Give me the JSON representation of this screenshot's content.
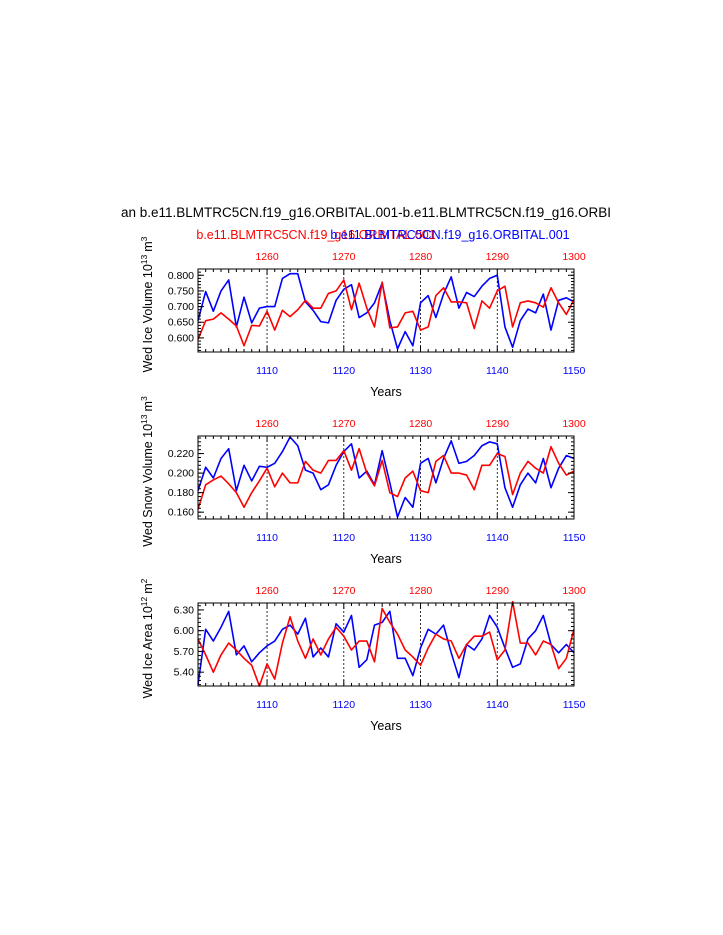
{
  "title": "an b.e11.BLMTRC5CN.f19_g16.ORBITAL.001-b.e11.BLMTRC5CN.f19_g16.ORBI",
  "legend": {
    "red_label": "b.e11.BLMTRC5CN.f19_g16.ORBITAL.001",
    "blue_label": "b.e11.BLMTRC5CN.f19_g16.ORBITAL.001"
  },
  "colors": {
    "red": "#ff0000",
    "blue": "#0000ff"
  },
  "chart_data": [
    {
      "type": "line",
      "title": "",
      "ylabel": "Wed Ice Volume 10^13 m^3",
      "ylabel_main": "Wed Ice Volume 10",
      "ylabel_exp": "13",
      "ylabel_unit": "m",
      "ylabel_unit_exp": "3",
      "xlabel": "Years",
      "x_bottom": {
        "range": [
          1101,
          1150
        ],
        "ticks": [
          1110,
          1120,
          1130,
          1140,
          1150
        ],
        "color": "#0000ff"
      },
      "x_top": {
        "range": [
          1251,
          1300
        ],
        "ticks": [
          1260,
          1270,
          1280,
          1290,
          1300
        ],
        "color": "#ff0000"
      },
      "ylim": [
        0.555,
        0.82
      ],
      "yticks": [
        0.6,
        0.65,
        0.7,
        0.75,
        0.8
      ],
      "ytick_labels": [
        "0.600",
        "0.650",
        "0.700",
        "0.750",
        "0.800"
      ],
      "series": [
        {
          "name": "blue",
          "color": "#0000ff",
          "values": [
            0.655,
            0.748,
            0.685,
            0.75,
            0.785,
            0.635,
            0.73,
            0.648,
            0.695,
            0.7,
            0.7,
            0.79,
            0.805,
            0.805,
            0.715,
            0.688,
            0.652,
            0.648,
            0.72,
            0.755,
            0.77,
            0.665,
            0.68,
            0.712,
            0.775,
            0.655,
            0.565,
            0.62,
            0.575,
            0.712,
            0.735,
            0.665,
            0.74,
            0.795,
            0.695,
            0.745,
            0.732,
            0.765,
            0.79,
            0.8,
            0.635,
            0.57,
            0.655,
            0.692,
            0.68,
            0.74,
            0.625,
            0.72,
            0.728,
            0.715
          ]
        },
        {
          "name": "red",
          "color": "#ff0000",
          "values": [
            0.595,
            0.655,
            0.66,
            0.68,
            0.66,
            0.638,
            0.575,
            0.64,
            0.638,
            0.685,
            0.625,
            0.688,
            0.668,
            0.69,
            0.72,
            0.695,
            0.695,
            0.742,
            0.75,
            0.785,
            0.69,
            0.775,
            0.695,
            0.635,
            0.778,
            0.632,
            0.635,
            0.68,
            0.685,
            0.625,
            0.635,
            0.735,
            0.76,
            0.715,
            0.715,
            0.712,
            0.63,
            0.718,
            0.695,
            0.75,
            0.765,
            0.635,
            0.712,
            0.718,
            0.712,
            0.698,
            0.76,
            0.712,
            0.675,
            0.722
          ]
        }
      ]
    },
    {
      "type": "line",
      "title": "",
      "ylabel": "Wed Snow Volume 10^13 m^3",
      "ylabel_main": "Wed Snow Volume 10",
      "ylabel_exp": "13",
      "ylabel_unit": "m",
      "ylabel_unit_exp": "3",
      "xlabel": "Years",
      "x_bottom": {
        "range": [
          1101,
          1150
        ],
        "ticks": [
          1110,
          1120,
          1130,
          1140,
          1150
        ],
        "color": "#0000ff"
      },
      "x_top": {
        "range": [
          1251,
          1300
        ],
        "ticks": [
          1260,
          1270,
          1280,
          1290,
          1300
        ],
        "color": "#ff0000"
      },
      "ylim": [
        0.153,
        0.238
      ],
      "yticks": [
        0.16,
        0.18,
        0.2,
        0.22
      ],
      "ytick_labels": [
        "0.160",
        "0.180",
        "0.200",
        "0.220"
      ],
      "series": [
        {
          "name": "blue",
          "color": "#0000ff",
          "values": [
            0.182,
            0.206,
            0.195,
            0.215,
            0.225,
            0.182,
            0.208,
            0.192,
            0.207,
            0.206,
            0.21,
            0.222,
            0.237,
            0.228,
            0.203,
            0.2,
            0.183,
            0.188,
            0.208,
            0.222,
            0.23,
            0.195,
            0.202,
            0.188,
            0.223,
            0.19,
            0.155,
            0.175,
            0.165,
            0.21,
            0.215,
            0.19,
            0.215,
            0.233,
            0.21,
            0.212,
            0.218,
            0.228,
            0.232,
            0.23,
            0.185,
            0.165,
            0.188,
            0.2,
            0.19,
            0.215,
            0.185,
            0.205,
            0.218,
            0.215
          ]
        },
        {
          "name": "red",
          "color": "#ff0000",
          "values": [
            0.163,
            0.188,
            0.193,
            0.197,
            0.189,
            0.18,
            0.165,
            0.18,
            0.192,
            0.205,
            0.186,
            0.2,
            0.19,
            0.19,
            0.212,
            0.203,
            0.2,
            0.213,
            0.213,
            0.223,
            0.203,
            0.225,
            0.2,
            0.187,
            0.213,
            0.18,
            0.176,
            0.195,
            0.202,
            0.182,
            0.18,
            0.212,
            0.218,
            0.2,
            0.2,
            0.198,
            0.183,
            0.208,
            0.208,
            0.22,
            0.217,
            0.178,
            0.2,
            0.212,
            0.205,
            0.2,
            0.227,
            0.21,
            0.198,
            0.202
          ]
        }
      ]
    },
    {
      "type": "line",
      "title": "",
      "ylabel": "Wed Ice Area 10^12 m^2",
      "ylabel_main": "Wed Ice Area 10",
      "ylabel_exp": "12",
      "ylabel_unit": "m",
      "ylabel_unit_exp": "2",
      "xlabel": "Years",
      "x_bottom": {
        "range": [
          1101,
          1150
        ],
        "ticks": [
          1110,
          1120,
          1130,
          1140,
          1150
        ],
        "color": "#0000ff"
      },
      "x_top": {
        "range": [
          1251,
          1300
        ],
        "ticks": [
          1260,
          1270,
          1280,
          1290,
          1300
        ],
        "color": "#ff0000"
      },
      "ylim": [
        5.2,
        6.4
      ],
      "yticks": [
        5.4,
        5.7,
        6.0,
        6.3
      ],
      "ytick_labels": [
        "5.40",
        "5.70",
        "6.00",
        "6.30"
      ],
      "series": [
        {
          "name": "blue",
          "color": "#0000ff",
          "values": [
            5.22,
            6.02,
            5.85,
            6.05,
            6.28,
            5.65,
            5.78,
            5.55,
            5.68,
            5.78,
            5.85,
            6.02,
            6.08,
            5.95,
            6.18,
            5.62,
            5.75,
            5.62,
            6.1,
            5.98,
            6.22,
            5.47,
            5.58,
            6.08,
            6.12,
            6.28,
            5.6,
            5.6,
            5.35,
            5.75,
            6.02,
            5.95,
            6.08,
            5.68,
            5.32,
            5.8,
            5.72,
            5.88,
            6.22,
            6.05,
            5.75,
            5.47,
            5.52,
            5.88,
            6.0,
            6.22,
            5.8,
            5.68,
            5.8,
            5.68
          ]
        },
        {
          "name": "red",
          "color": "#ff0000",
          "values": [
            5.88,
            5.65,
            5.4,
            5.65,
            5.82,
            5.72,
            5.6,
            5.5,
            5.2,
            5.52,
            5.3,
            5.82,
            6.2,
            5.85,
            5.6,
            5.88,
            5.65,
            5.88,
            6.05,
            5.92,
            5.72,
            5.85,
            5.85,
            5.55,
            6.32,
            6.12,
            5.95,
            5.72,
            5.62,
            5.5,
            5.75,
            5.95,
            5.88,
            5.85,
            5.6,
            5.8,
            5.92,
            5.92,
            5.98,
            5.58,
            5.72,
            6.42,
            5.82,
            5.82,
            5.65,
            5.85,
            5.8,
            5.45,
            5.6,
            6.02
          ]
        }
      ]
    }
  ]
}
